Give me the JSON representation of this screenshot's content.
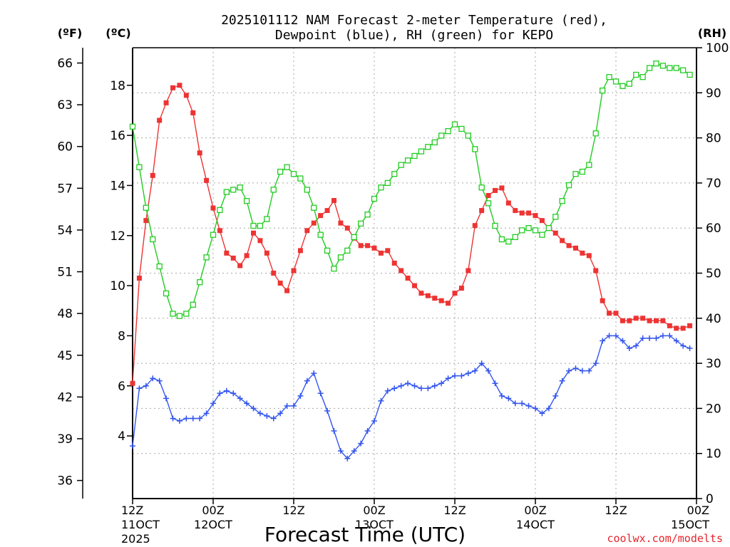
{
  "chart_data": {
    "type": "line",
    "title_line1": "2025101112 NAM Forecast 2-meter Temperature (red),",
    "title_line2": "Dewpoint (blue), RH (green) for KEPO",
    "xlabel": "Forecast Time (UTC)",
    "unit_label_f": "(ºF)",
    "unit_label_c": "(ºC)",
    "unit_label_rh": "(RH)",
    "watermark": "coolwx.com/modelts",
    "x_range": [
      0,
      84
    ],
    "c_range": [
      1.5,
      19.5
    ],
    "rh_range": [
      0,
      100
    ],
    "f_ticks": [
      "36",
      "39",
      "42",
      "45",
      "48",
      "51",
      "54",
      "57",
      "60",
      "63",
      "66"
    ],
    "c_ticks": [
      "4",
      "6",
      "8",
      "10",
      "12",
      "14",
      "16",
      "18"
    ],
    "rh_ticks": [
      "0",
      "10",
      "20",
      "30",
      "40",
      "50",
      "60",
      "70",
      "80",
      "90",
      "100"
    ],
    "x_ticks": [
      {
        "hour": 0,
        "line1": "12Z",
        "line2": "11OCT",
        "line3": "2025"
      },
      {
        "hour": 12,
        "line1": "00Z",
        "line2": "12OCT",
        "line3": ""
      },
      {
        "hour": 24,
        "line1": "12Z",
        "line2": "",
        "line3": ""
      },
      {
        "hour": 36,
        "line1": "00Z",
        "line2": "13OCT",
        "line3": ""
      },
      {
        "hour": 48,
        "line1": "12Z",
        "line2": "",
        "line3": ""
      },
      {
        "hour": 60,
        "line1": "00Z",
        "line2": "14OCT",
        "line3": ""
      },
      {
        "hour": 72,
        "line1": "12Z",
        "line2": "",
        "line3": ""
      },
      {
        "hour": 84,
        "line1": "00Z",
        "line2": "15OCT",
        "line3": ""
      }
    ],
    "series": [
      {
        "name": "2-meter Temperature",
        "units": "C",
        "color": "#ee3333",
        "marker": "filled-square",
        "values": [
          6.1,
          10.3,
          12.6,
          14.4,
          16.6,
          17.3,
          17.9,
          18.0,
          17.6,
          16.9,
          15.3,
          14.2,
          13.1,
          12.2,
          11.3,
          11.1,
          10.8,
          11.2,
          12.1,
          11.8,
          11.3,
          10.5,
          10.1,
          9.8,
          10.6,
          11.4,
          12.2,
          12.5,
          12.8,
          13.0,
          13.4,
          12.5,
          12.3,
          11.9,
          11.6,
          11.6,
          11.5,
          11.3,
          11.4,
          10.9,
          10.6,
          10.3,
          10.0,
          9.7,
          9.6,
          9.5,
          9.4,
          9.3,
          9.7,
          9.9,
          10.6,
          12.4,
          13.0,
          13.6,
          13.8,
          13.9,
          13.3,
          13.0,
          12.9,
          12.9,
          12.8,
          12.6,
          12.3,
          12.1,
          11.8,
          11.6,
          11.5,
          11.3,
          11.2,
          10.6,
          9.4,
          8.9,
          8.9,
          8.6,
          8.6,
          8.7,
          8.7,
          8.6,
          8.6,
          8.6,
          8.4,
          8.3,
          8.3,
          8.4
        ]
      },
      {
        "name": "Dewpoint",
        "units": "C",
        "color": "#3355ee",
        "marker": "plus",
        "values": [
          3.6,
          5.9,
          6.0,
          6.3,
          6.2,
          5.5,
          4.7,
          4.6,
          4.7,
          4.7,
          4.7,
          4.9,
          5.3,
          5.7,
          5.8,
          5.7,
          5.5,
          5.3,
          5.1,
          4.9,
          4.8,
          4.7,
          4.9,
          5.2,
          5.2,
          5.6,
          6.2,
          6.5,
          5.7,
          5.0,
          4.2,
          3.4,
          3.1,
          3.4,
          3.7,
          4.2,
          4.6,
          5.4,
          5.8,
          5.9,
          6.0,
          6.1,
          6.0,
          5.9,
          5.9,
          6.0,
          6.1,
          6.3,
          6.4,
          6.4,
          6.5,
          6.6,
          6.9,
          6.6,
          6.1,
          5.6,
          5.5,
          5.3,
          5.3,
          5.2,
          5.1,
          4.9,
          5.1,
          5.6,
          6.2,
          6.6,
          6.7,
          6.6,
          6.6,
          6.9,
          7.8,
          8.0,
          8.0,
          7.8,
          7.5,
          7.6,
          7.9,
          7.9,
          7.9,
          8.0,
          8.0,
          7.8,
          7.6,
          7.5
        ]
      },
      {
        "name": "RH",
        "units": "%",
        "color": "#22cc22",
        "marker": "open-square",
        "values": [
          82.5,
          73.5,
          64.5,
          57.5,
          51.5,
          45.5,
          41.0,
          40.5,
          41.0,
          43.0,
          48.0,
          53.5,
          58.5,
          64.0,
          68.0,
          68.5,
          69.0,
          66.0,
          60.5,
          60.5,
          62.0,
          68.5,
          72.5,
          73.5,
          72.0,
          71.0,
          68.5,
          64.5,
          58.5,
          55.0,
          51.0,
          53.5,
          55.0,
          58.0,
          61.0,
          63.0,
          66.5,
          69.0,
          70.0,
          72.0,
          74.0,
          75.0,
          76.0,
          77.0,
          78.0,
          79.0,
          80.5,
          81.5,
          83.0,
          82.0,
          80.5,
          77.5,
          69.0,
          65.5,
          60.5,
          57.5,
          57.0,
          58.0,
          59.5,
          60.0,
          59.5,
          58.5,
          60.0,
          62.5,
          66.0,
          69.5,
          72.0,
          72.5,
          74.0,
          81.0,
          90.5,
          93.5,
          92.5,
          91.5,
          92.0,
          94.0,
          93.5,
          95.5,
          96.5,
          96.0,
          95.5,
          95.5,
          95.0,
          94.0
        ]
      }
    ]
  }
}
